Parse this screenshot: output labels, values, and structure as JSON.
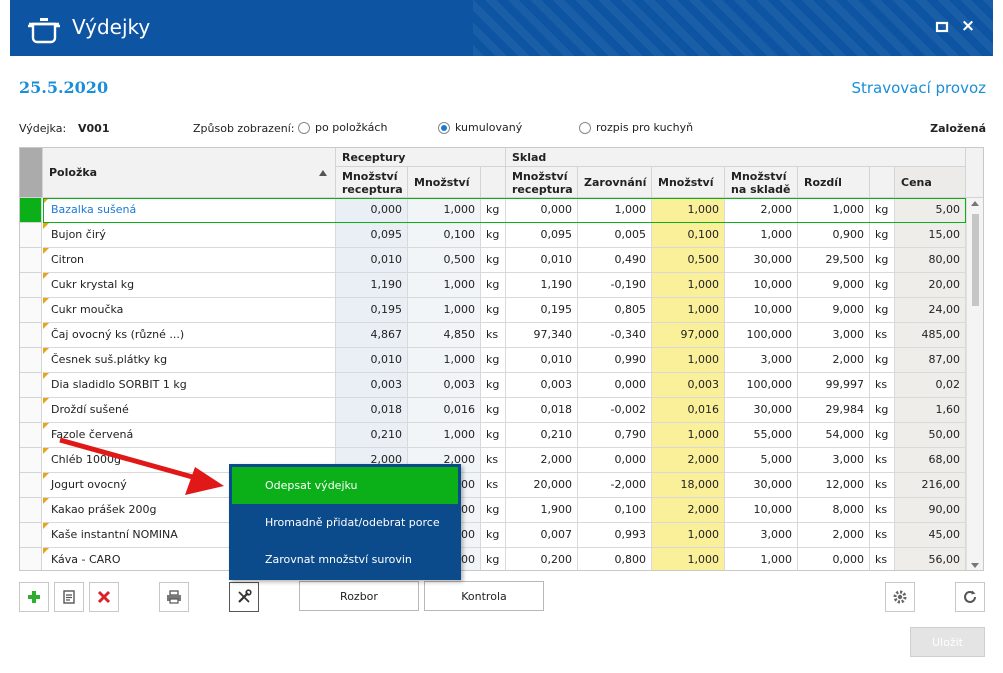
{
  "window": {
    "title": "Výdejky",
    "icon": "cooking-pot-icon",
    "max_icon": "maximize-icon",
    "close_icon": "close-icon",
    "close_glyph": "×",
    "accent": "#0d55a2"
  },
  "header": {
    "date": "25.5.2020",
    "provoz": "Stravovací provoz"
  },
  "meta": {
    "vydejka_label": "Výdejka:",
    "vydejka_value": "V001",
    "zpusob_label": "Způsob zobrazení:",
    "options": [
      {
        "label": "po položkách",
        "selected": false
      },
      {
        "label": "kumulovaný",
        "selected": true
      },
      {
        "label": "rozpis pro kuchyň",
        "selected": false
      }
    ],
    "status": "Založená"
  },
  "grid": {
    "group_headers": {
      "receptury": "Receptury",
      "sklad": "Sklad"
    },
    "columns": {
      "polozka": "Položka",
      "r_mnozstvi_receptura": "Množství receptura",
      "r_mnozstvi": "Množství",
      "s_mnozstvi_receptura": "Množství receptura",
      "zarovnani": "Zarovnání",
      "s_mnozstvi": "Množství",
      "na_sklade": "Množství na skladě",
      "rozdil": "Rozdíl",
      "cena": "Cena"
    },
    "rows": [
      {
        "name": "Bazalka sušená",
        "r_rec": "0,000",
        "r_mn": "1,000",
        "u1": "kg",
        "s_rec": "0,000",
        "zar": "1,000",
        "s_mn": "1,000",
        "skl": "2,000",
        "roz": "1,000",
        "u2": "kg",
        "cena": "5,00"
      },
      {
        "name": "Bujon  čirý",
        "r_rec": "0,095",
        "r_mn": "0,100",
        "u1": "kg",
        "s_rec": "0,095",
        "zar": "0,005",
        "s_mn": "0,100",
        "skl": "1,000",
        "roz": "0,900",
        "u2": "kg",
        "cena": "15,00"
      },
      {
        "name": "Citron",
        "r_rec": "0,010",
        "r_mn": "0,500",
        "u1": "kg",
        "s_rec": "0,010",
        "zar": "0,490",
        "s_mn": "0,500",
        "skl": "30,000",
        "roz": "29,500",
        "u2": "kg",
        "cena": "80,00"
      },
      {
        "name": "Cukr krystal kg",
        "r_rec": "1,190",
        "r_mn": "1,000",
        "u1": "kg",
        "s_rec": "1,190",
        "zar": "-0,190",
        "s_mn": "1,000",
        "skl": "10,000",
        "roz": "9,000",
        "u2": "kg",
        "cena": "20,00"
      },
      {
        "name": "Cukr moučka",
        "r_rec": "0,195",
        "r_mn": "1,000",
        "u1": "kg",
        "s_rec": "0,195",
        "zar": "0,805",
        "s_mn": "1,000",
        "skl": "10,000",
        "roz": "9,000",
        "u2": "kg",
        "cena": "24,00"
      },
      {
        "name": "Čaj ovocný  ks (různé ...)",
        "r_rec": "4,867",
        "r_mn": "4,850",
        "u1": "ks",
        "s_rec": "97,340",
        "zar": "-0,340",
        "s_mn": "97,000",
        "skl": "100,000",
        "roz": "3,000",
        "u2": "ks",
        "cena": "485,00"
      },
      {
        "name": "Česnek  suš.plátky  kg",
        "r_rec": "0,010",
        "r_mn": "1,000",
        "u1": "kg",
        "s_rec": "0,010",
        "zar": "0,990",
        "s_mn": "1,000",
        "skl": "3,000",
        "roz": "2,000",
        "u2": "kg",
        "cena": "87,00"
      },
      {
        "name": "Dia sladidlo SORBIT 1 kg",
        "r_rec": "0,003",
        "r_mn": "0,003",
        "u1": "kg",
        "s_rec": "0,003",
        "zar": "0,000",
        "s_mn": "0,003",
        "skl": "100,000",
        "roz": "99,997",
        "u2": "ks",
        "cena": "0,02"
      },
      {
        "name": "Droždí sušené",
        "r_rec": "0,018",
        "r_mn": "0,016",
        "u1": "kg",
        "s_rec": "0,018",
        "zar": "-0,002",
        "s_mn": "0,016",
        "skl": "30,000",
        "roz": "29,984",
        "u2": "kg",
        "cena": "1,60"
      },
      {
        "name": "Fazole červená",
        "r_rec": "0,210",
        "r_mn": "1,000",
        "u1": "kg",
        "s_rec": "0,210",
        "zar": "0,790",
        "s_mn": "1,000",
        "skl": "55,000",
        "roz": "54,000",
        "u2": "kg",
        "cena": "50,00"
      },
      {
        "name": "Chléb 1000g",
        "r_rec": "2,000",
        "r_mn": "2,000",
        "u1": "ks",
        "s_rec": "2,000",
        "zar": "0,000",
        "s_mn": "2,000",
        "skl": "5,000",
        "roz": "3,000",
        "u2": "ks",
        "cena": "68,00"
      },
      {
        "name": "Jogurt  ovocný",
        "r_rec": "",
        "r_mn": "000",
        "u1": "ks",
        "s_rec": "20,000",
        "zar": "-2,000",
        "s_mn": "18,000",
        "skl": "30,000",
        "roz": "12,000",
        "u2": "ks",
        "cena": "216,00"
      },
      {
        "name": "Kakao prášek 200g",
        "r_rec": "",
        "r_mn": "400",
        "u1": "kg",
        "s_rec": "1,900",
        "zar": "0,100",
        "s_mn": "2,000",
        "skl": "10,000",
        "roz": "8,000",
        "u2": "ks",
        "cena": "90,00"
      },
      {
        "name": "Kaše instantní NOMINA",
        "r_rec": "",
        "r_mn": "300",
        "u1": "kg",
        "s_rec": "0,007",
        "zar": "0,993",
        "s_mn": "1,000",
        "skl": "3,000",
        "roz": "2,000",
        "u2": "ks",
        "cena": "45,00"
      },
      {
        "name": "Káva - CARO",
        "r_rec": "",
        "r_mn": "500",
        "u1": "kg",
        "s_rec": "0,200",
        "zar": "0,800",
        "s_mn": "1,000",
        "skl": "1,000",
        "roz": "0,000",
        "u2": "ks",
        "cena": "56,00"
      }
    ]
  },
  "context_menu": {
    "items": [
      {
        "label": "Odepsat výdejku",
        "highlighted": true
      },
      {
        "label": "Hromadně přidat/odebrat porce",
        "highlighted": false
      },
      {
        "label": "Zarovnat množství surovin",
        "highlighted": false
      }
    ]
  },
  "toolbar": {
    "icons": [
      "add-icon",
      "edit-note-icon",
      "delete-icon",
      "print-icon",
      "tools-icon",
      "settings-icon",
      "refresh-icon"
    ],
    "rozbor": "Rozbor",
    "kontrola": "Kontrola",
    "ulozit": "Uložit"
  },
  "colors": {
    "accent_blue": "#1a8ed8",
    "highlight_yellow": "#fbf09a",
    "menu_green": "#0bb018",
    "menu_blue": "#0b4a8b",
    "add_green": "#2fae2f",
    "delete_red": "#d8232a",
    "selection_green": "#0bb018"
  }
}
